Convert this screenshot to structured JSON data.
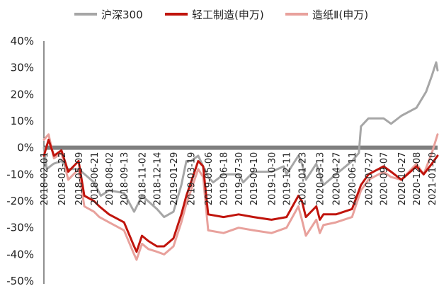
{
  "chart_data": {
    "type": "line",
    "title": "",
    "xlabel": "",
    "ylabel": "",
    "ylim": [
      -50,
      40
    ],
    "y_ticks": [
      40,
      30,
      20,
      10,
      0,
      -10,
      -20,
      -30,
      -40,
      -50
    ],
    "y_tick_labels": [
      "40%",
      "30%",
      "20%",
      "10%",
      "0%",
      "-10%",
      "-20%",
      "-30%",
      "-40%",
      "-50%"
    ],
    "x_tick_labels": [
      "2018-02-01",
      "2018-03-22",
      "2018-05-09",
      "2018-06-21",
      "2018-08-02",
      "2018-09-13",
      "2018-11-02",
      "2018-12-14",
      "2019-01-29",
      "2019-03-19",
      "2019-05-06",
      "2019-06-18",
      "2019-07-30",
      "2019-09-10",
      "2019-10-30",
      "2019-12-11",
      "2020-01-23",
      "2020-03-13",
      "2020-04-27",
      "2020-06-11",
      "2020-07-27",
      "2020-09-07",
      "2020-10-27",
      "2020-12-08",
      "2021-01-20"
    ],
    "x_date_range": [
      "2018-02-01",
      "2021-02-05"
    ],
    "legend_position": "top",
    "series": [
      {
        "name": "沪深300",
        "color": "#a6a6a6",
        "x": [
          "2018-02-01",
          "2018-02-09",
          "2018-02-28",
          "2018-03-22",
          "2018-04-09",
          "2018-05-09",
          "2018-06-21",
          "2018-07-10",
          "2018-08-02",
          "2018-09-13",
          "2018-10-11",
          "2018-11-02",
          "2018-12-14",
          "2019-01-03",
          "2019-01-29",
          "2019-02-20",
          "2019-03-06",
          "2019-03-19",
          "2019-04-08",
          "2019-05-06",
          "2019-05-20",
          "2019-06-18",
          "2019-07-30",
          "2019-08-12",
          "2019-09-10",
          "2019-10-30",
          "2019-12-03",
          "2019-12-11",
          "2020-01-13",
          "2020-01-23",
          "2020-02-03",
          "2020-03-03",
          "2020-03-13",
          "2020-03-23",
          "2020-04-27",
          "2020-06-11",
          "2020-06-30",
          "2020-07-06",
          "2020-07-27",
          "2020-09-07",
          "2020-09-28",
          "2020-10-27",
          "2020-12-08",
          "2021-01-04",
          "2021-01-20",
          "2021-02-01",
          "2021-02-05"
        ],
        "values": [
          0,
          -8,
          -6,
          -5,
          -8,
          -8,
          -13,
          -18,
          -16,
          -17,
          -24,
          -18,
          -23,
          -26,
          -24,
          -14,
          -5,
          -5,
          -3,
          -11,
          -13,
          -10,
          -10,
          -13,
          -9,
          -9,
          -7,
          -10,
          -3,
          -6,
          -12,
          -6,
          -10,
          -14,
          -10,
          -5,
          -2,
          8,
          11,
          11,
          9,
          12,
          15,
          21,
          27,
          32,
          29
        ]
      },
      {
        "name": "轻工制造(申万)",
        "color": "#c0140c",
        "x": [
          "2018-02-01",
          "2018-02-14",
          "2018-03-01",
          "2018-03-22",
          "2018-04-10",
          "2018-05-09",
          "2018-05-25",
          "2018-06-21",
          "2018-07-06",
          "2018-08-02",
          "2018-09-13",
          "2018-10-11",
          "2018-10-18",
          "2018-11-02",
          "2018-11-20",
          "2018-12-14",
          "2019-01-03",
          "2019-01-29",
          "2019-02-20",
          "2019-03-06",
          "2019-03-19",
          "2019-04-08",
          "2019-04-22",
          "2019-05-06",
          "2019-06-18",
          "2019-07-30",
          "2019-09-10",
          "2019-10-30",
          "2019-12-11",
          "2020-01-13",
          "2020-01-23",
          "2020-02-03",
          "2020-03-03",
          "2020-03-13",
          "2020-03-23",
          "2020-04-27",
          "2020-06-11",
          "2020-07-06",
          "2020-07-27",
          "2020-09-07",
          "2020-09-28",
          "2020-10-27",
          "2020-12-08",
          "2020-12-28",
          "2021-01-20",
          "2021-02-05"
        ],
        "values": [
          -3,
          3,
          -3,
          -1,
          -9,
          -5,
          -18,
          -20,
          -22,
          -25,
          -28,
          -37,
          -39,
          -33,
          -35,
          -37,
          -37,
          -34,
          -25,
          -18,
          -13,
          -5,
          -7,
          -25,
          -26,
          -25,
          -26,
          -27,
          -26,
          -18,
          -20,
          -26,
          -22,
          -27,
          -25,
          -25,
          -23,
          -14,
          -10,
          -7,
          -9,
          -12,
          -7,
          -10,
          -6,
          -3
        ]
      },
      {
        "name": "造纸Ⅱ(申万)",
        "color": "#e8a19c",
        "x": [
          "2018-02-01",
          "2018-02-14",
          "2018-03-01",
          "2018-03-22",
          "2018-04-10",
          "2018-05-09",
          "2018-05-25",
          "2018-06-21",
          "2018-07-06",
          "2018-08-02",
          "2018-09-13",
          "2018-10-11",
          "2018-10-18",
          "2018-11-02",
          "2018-11-20",
          "2018-12-14",
          "2019-01-03",
          "2019-01-29",
          "2019-02-20",
          "2019-03-06",
          "2019-03-19",
          "2019-04-08",
          "2019-04-22",
          "2019-05-06",
          "2019-06-18",
          "2019-07-30",
          "2019-09-10",
          "2019-10-30",
          "2019-12-11",
          "2020-01-13",
          "2020-01-23",
          "2020-02-03",
          "2020-03-03",
          "2020-03-13",
          "2020-03-23",
          "2020-04-27",
          "2020-06-11",
          "2020-07-06",
          "2020-07-27",
          "2020-09-07",
          "2020-09-28",
          "2020-10-27",
          "2020-12-08",
          "2020-12-28",
          "2021-01-20",
          "2021-02-05"
        ],
        "values": [
          3,
          5,
          -4,
          -2,
          -12,
          -8,
          -22,
          -24,
          -26,
          -28,
          -31,
          -40,
          -42,
          -36,
          -38,
          -39,
          -40,
          -37,
          -28,
          -21,
          -16,
          -8,
          -11,
          -31,
          -32,
          -30,
          -31,
          -32,
          -30,
          -22,
          -27,
          -33,
          -27,
          -32,
          -29,
          -28,
          -26,
          -16,
          -12,
          -9,
          -11,
          -12,
          -6,
          -10,
          -2,
          5
        ]
      }
    ]
  }
}
